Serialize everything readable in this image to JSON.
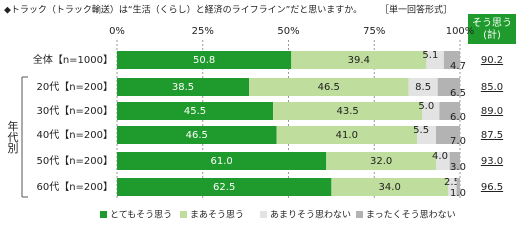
{
  "chart_data": {
    "type": "stacked-bar-horizontal",
    "title": "◆トラック（トラック輸送）は“生活（くらし）と経済のライフライン”だと思いますか。",
    "subtitle": "［単一回答形式］",
    "categories": [
      "全体【n=1000】",
      "20代【n=200】",
      "30代【n=200】",
      "40代【n=200】",
      "50代【n=200】",
      "60代【n=200】"
    ],
    "group_label": "年代別",
    "xlim": [
      0,
      100
    ],
    "xticks": [
      {
        "value": 0,
        "label": "0%"
      },
      {
        "value": 25,
        "label": "25%"
      },
      {
        "value": 50,
        "label": "50%"
      },
      {
        "value": 75,
        "label": "75%"
      },
      {
        "value": 100,
        "label": "100%"
      }
    ],
    "grid": true,
    "series": [
      {
        "name": "とてもそう思う",
        "color": "#1e9b2c",
        "values": [
          50.8,
          38.5,
          45.5,
          46.5,
          61.0,
          62.5
        ],
        "value_labels": [
          "50.8",
          "38.5",
          "45.5",
          "46.5",
          "61.0",
          "62.5"
        ]
      },
      {
        "name": "まあそう思う",
        "color": "#bfdd9c",
        "values": [
          39.4,
          46.5,
          43.5,
          41.0,
          32.0,
          34.0
        ],
        "value_labels": [
          "39.4",
          "46.5",
          "43.5",
          "41.0",
          "32.0",
          "34.0"
        ]
      },
      {
        "name": "あまりそう思わない",
        "color": "#e3e3e3",
        "values": [
          5.1,
          8.5,
          5.0,
          5.5,
          4.0,
          2.5
        ],
        "value_labels": [
          "5.1",
          "8.5",
          "5.0",
          "5.5",
          "4.0",
          "2.5"
        ]
      },
      {
        "name": "まったくそう思わない",
        "color": "#b3b3b3",
        "values": [
          4.7,
          6.5,
          6.0,
          7.0,
          3.0,
          1.0
        ],
        "value_labels": [
          "4.7",
          "6.5",
          "6.0",
          "7.0",
          "3.0",
          "1.0"
        ]
      }
    ],
    "total": {
      "title_lines": [
        "そう思う",
        "(計)"
      ],
      "labels": [
        "90.2",
        "85.0",
        "89.0",
        "87.5",
        "93.0",
        "96.5"
      ]
    }
  }
}
